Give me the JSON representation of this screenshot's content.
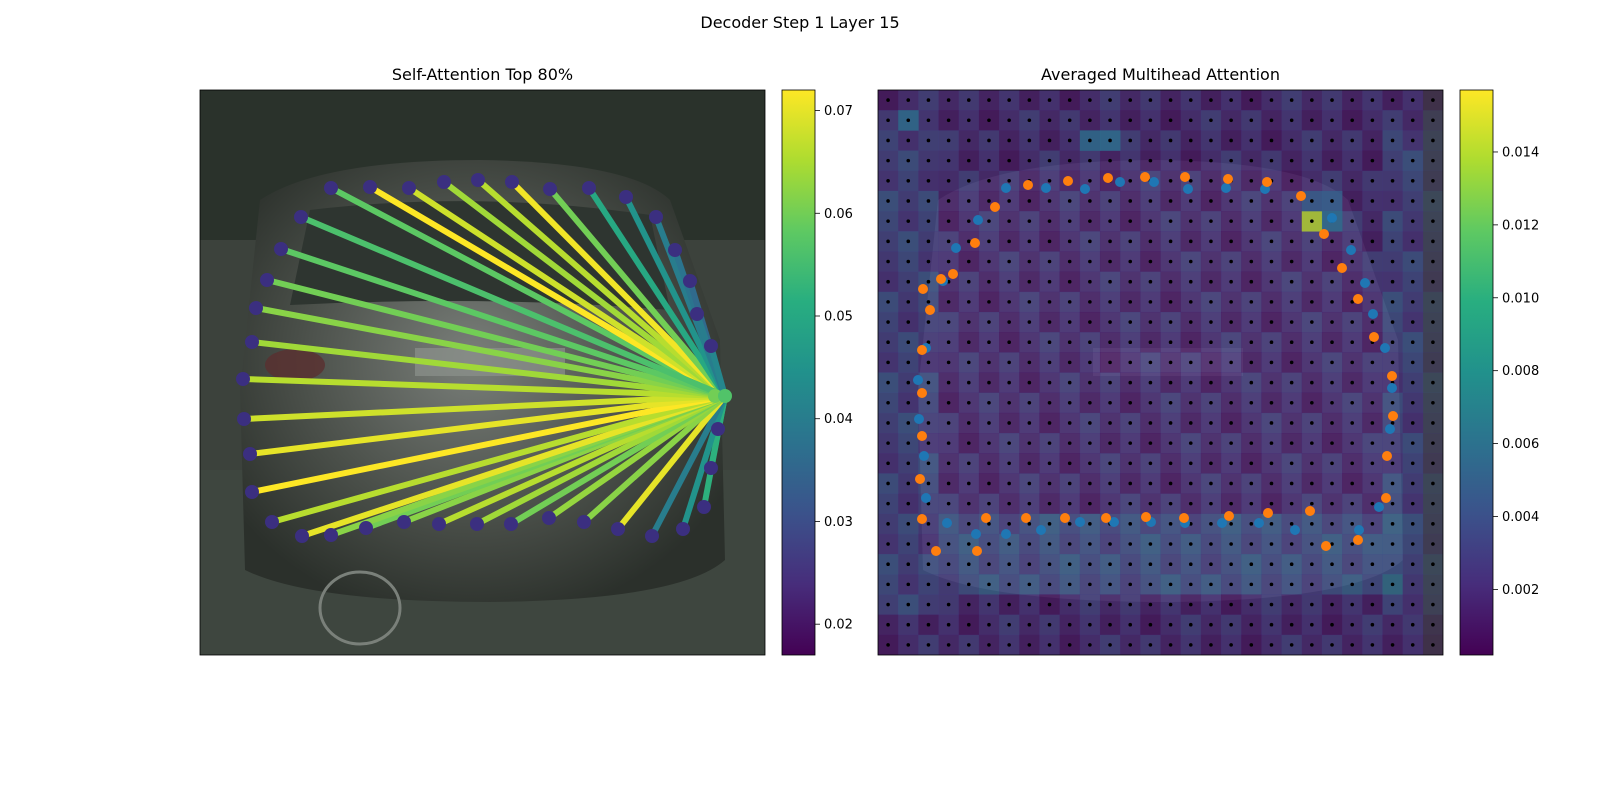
{
  "figure": {
    "title": "Decoder Step 1 Layer 15"
  },
  "chart_data": [
    {
      "type": "scatter",
      "title": "Self-Attention Top 80%",
      "description_of_marks": "Polygon vertex points with attention lines from the query vertex to others",
      "query_point": [
        525,
        306
      ],
      "points": [
        [
          131,
          98
        ],
        [
          170,
          97
        ],
        [
          209,
          98
        ],
        [
          244,
          92
        ],
        [
          278,
          90
        ],
        [
          312,
          92
        ],
        [
          350,
          99
        ],
        [
          389,
          98
        ],
        [
          426,
          107
        ],
        [
          456,
          127
        ],
        [
          475,
          160
        ],
        [
          490,
          191
        ],
        [
          497,
          224
        ],
        [
          511,
          256
        ],
        [
          515,
          306
        ],
        [
          518,
          339
        ],
        [
          511,
          378
        ],
        [
          504,
          417
        ],
        [
          483,
          439
        ],
        [
          452,
          446
        ],
        [
          418,
          439
        ],
        [
          384,
          432
        ],
        [
          349,
          428
        ],
        [
          311,
          434
        ],
        [
          277,
          434
        ],
        [
          239,
          434
        ],
        [
          204,
          432
        ],
        [
          166,
          438
        ],
        [
          131,
          445
        ],
        [
          102,
          446
        ],
        [
          72,
          432
        ],
        [
          52,
          402
        ],
        [
          50,
          364
        ],
        [
          44,
          329
        ],
        [
          43,
          289
        ],
        [
          52,
          252
        ],
        [
          56,
          218
        ],
        [
          67,
          190
        ],
        [
          81,
          159
        ],
        [
          101,
          127
        ]
      ],
      "weights": [
        0.058,
        0.072,
        0.068,
        0.064,
        0.066,
        0.071,
        0.06,
        0.05,
        0.045,
        0.04,
        0.038,
        0.036,
        0.04,
        0.042,
        null,
        0.062,
        0.05,
        0.052,
        0.045,
        0.04,
        0.07,
        0.062,
        0.063,
        0.06,
        0.064,
        0.066,
        0.062,
        0.06,
        0.062,
        0.07,
        0.066,
        0.072,
        0.07,
        0.068,
        0.066,
        0.064,
        0.062,
        0.06,
        0.058,
        0.056
      ],
      "point_color": "#3b2f80",
      "colorbar": {
        "min": 0.017,
        "max": 0.072,
        "ticks": [
          "0.02",
          "0.03",
          "0.04",
          "0.05",
          "0.06",
          "0.07"
        ],
        "tick_values": [
          0.02,
          0.03,
          0.04,
          0.05,
          0.06,
          0.07
        ],
        "colormap": "viridis"
      }
    },
    {
      "type": "heatmap",
      "title": "Averaged Multihead Attention",
      "grid_size": 28,
      "hot_cells": [
        {
          "cell": [
            1,
            1
          ],
          "value": 0.006
        },
        {
          "cell": [
            21,
            6
          ],
          "value": 0.014
        },
        {
          "cell": [
            10,
            2
          ],
          "value": 0.006
        },
        {
          "cell": [
            11,
            2
          ],
          "value": 0.006
        },
        {
          "cell": [
            21,
            5
          ],
          "value": 0.005
        },
        {
          "cell": [
            22,
            5
          ],
          "value": 0.005
        },
        {
          "cell": [
            22,
            6
          ],
          "value": 0.006
        }
      ],
      "series": [
        {
          "name": "",
          "color": "#1f77b4",
          "points": [
            [
              128,
              98
            ],
            [
              168,
              98
            ],
            [
              207,
              99
            ],
            [
              242,
              92
            ],
            [
              276,
              92
            ],
            [
              310,
              99
            ],
            [
              348,
              98
            ],
            [
              387,
              99
            ],
            [
              454,
              128
            ],
            [
              473,
              160
            ],
            [
              487,
              193
            ],
            [
              495,
              224
            ],
            [
              507,
              258
            ],
            [
              514,
              298
            ],
            [
              512,
              339
            ],
            [
              501,
              417
            ],
            [
              481,
              440
            ],
            [
              417,
              440
            ],
            [
              381,
              433
            ],
            [
              344,
              433
            ],
            [
              307,
              433
            ],
            [
              273,
              432
            ],
            [
              236,
              432
            ],
            [
              202,
              432
            ],
            [
              163,
              440
            ],
            [
              128,
              444
            ],
            [
              98,
              444
            ],
            [
              69,
              433
            ],
            [
              48,
              408
            ],
            [
              46,
              366
            ],
            [
              41,
              329
            ],
            [
              40,
              290
            ],
            [
              48,
              258
            ],
            [
              65,
              191
            ],
            [
              78,
              158
            ],
            [
              100,
              130
            ]
          ]
        },
        {
          "name": "",
          "color": "#ff7f0e",
          "points": [
            [
              150,
              95
            ],
            [
              190,
              91
            ],
            [
              230,
              88
            ],
            [
              267,
              87
            ],
            [
              307,
              87
            ],
            [
              350,
              89
            ],
            [
              389,
              92
            ],
            [
              423,
              106
            ],
            [
              446,
              144
            ],
            [
              464,
              178
            ],
            [
              480,
              209
            ],
            [
              496,
              247
            ],
            [
              514,
              286
            ],
            [
              515,
              326
            ],
            [
              509,
              366
            ],
            [
              508,
              408
            ],
            [
              480,
              450
            ],
            [
              448,
              456
            ],
            [
              432,
              421
            ],
            [
              390,
              423
            ],
            [
              351,
              426
            ],
            [
              306,
              428
            ],
            [
              268,
              427
            ],
            [
              228,
              428
            ],
            [
              187,
              428
            ],
            [
              148,
              428
            ],
            [
              108,
              428
            ],
            [
              99,
              461
            ],
            [
              58,
              461
            ],
            [
              44,
              429
            ],
            [
              42,
              389
            ],
            [
              44,
              346
            ],
            [
              44,
              303
            ],
            [
              44,
              260
            ],
            [
              52,
              220
            ],
            [
              63,
              189
            ],
            [
              75,
              184
            ],
            [
              97,
              153
            ],
            [
              117,
              117
            ],
            [
              45,
              199
            ]
          ]
        }
      ],
      "colorbar": {
        "min": 0.0002,
        "max": 0.0157,
        "ticks": [
          "0.002",
          "0.004",
          "0.006",
          "0.008",
          "0.010",
          "0.012",
          "0.014"
        ],
        "tick_values": [
          0.002,
          0.004,
          0.006,
          0.008,
          0.01,
          0.012,
          0.014
        ],
        "colormap": "viridis"
      }
    }
  ]
}
